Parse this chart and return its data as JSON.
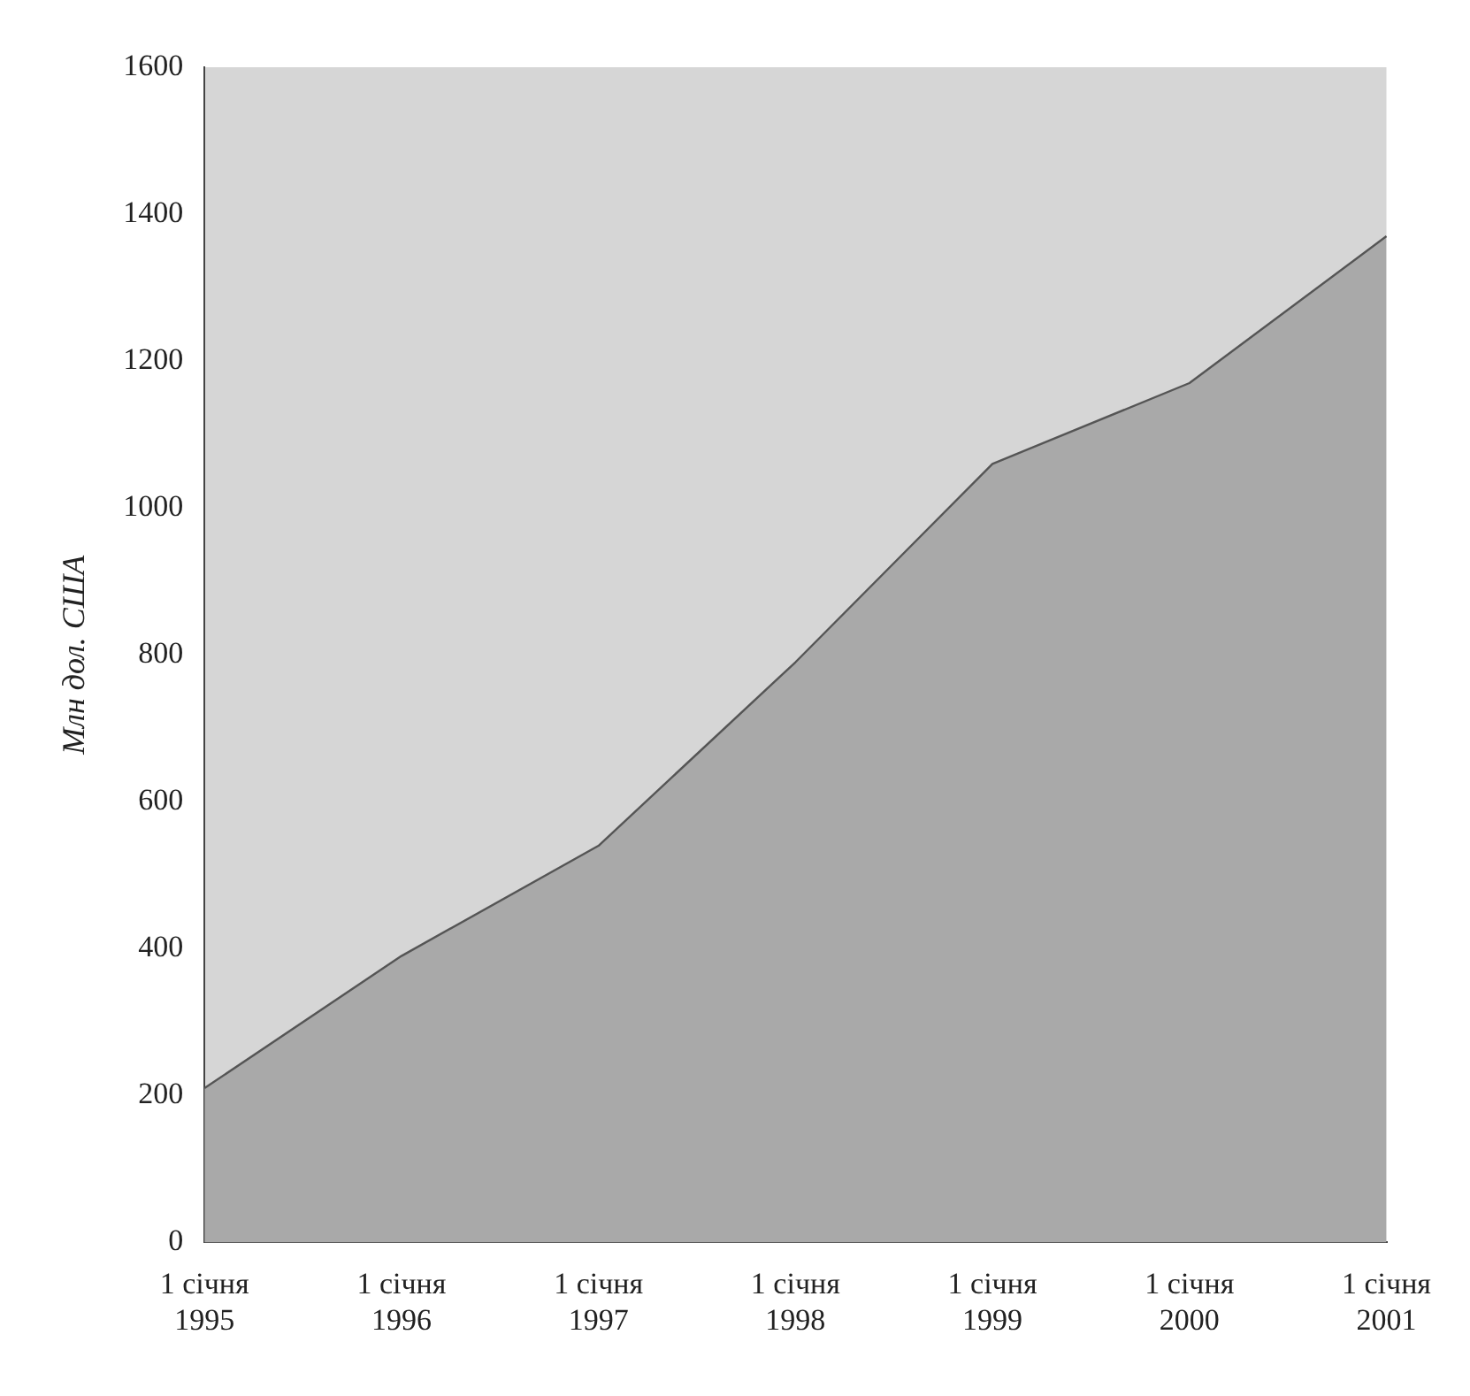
{
  "chart_data": {
    "type": "area",
    "ylabel": "Млн дол. США",
    "categories": [
      "1 січня 1995",
      "1 січня 1996",
      "1 січня 1997",
      "1 січня 1998",
      "1 січня 1999",
      "1 січня 2000",
      "1 січня 2001"
    ],
    "values": [
      210,
      390,
      540,
      790,
      1060,
      1170,
      1370
    ],
    "color": "#a9a9a9",
    "ylim": [
      0,
      1600
    ],
    "yticks": [
      0,
      200,
      400,
      600,
      800,
      1000,
      1200,
      1400,
      1600
    ],
    "grid": false
  }
}
